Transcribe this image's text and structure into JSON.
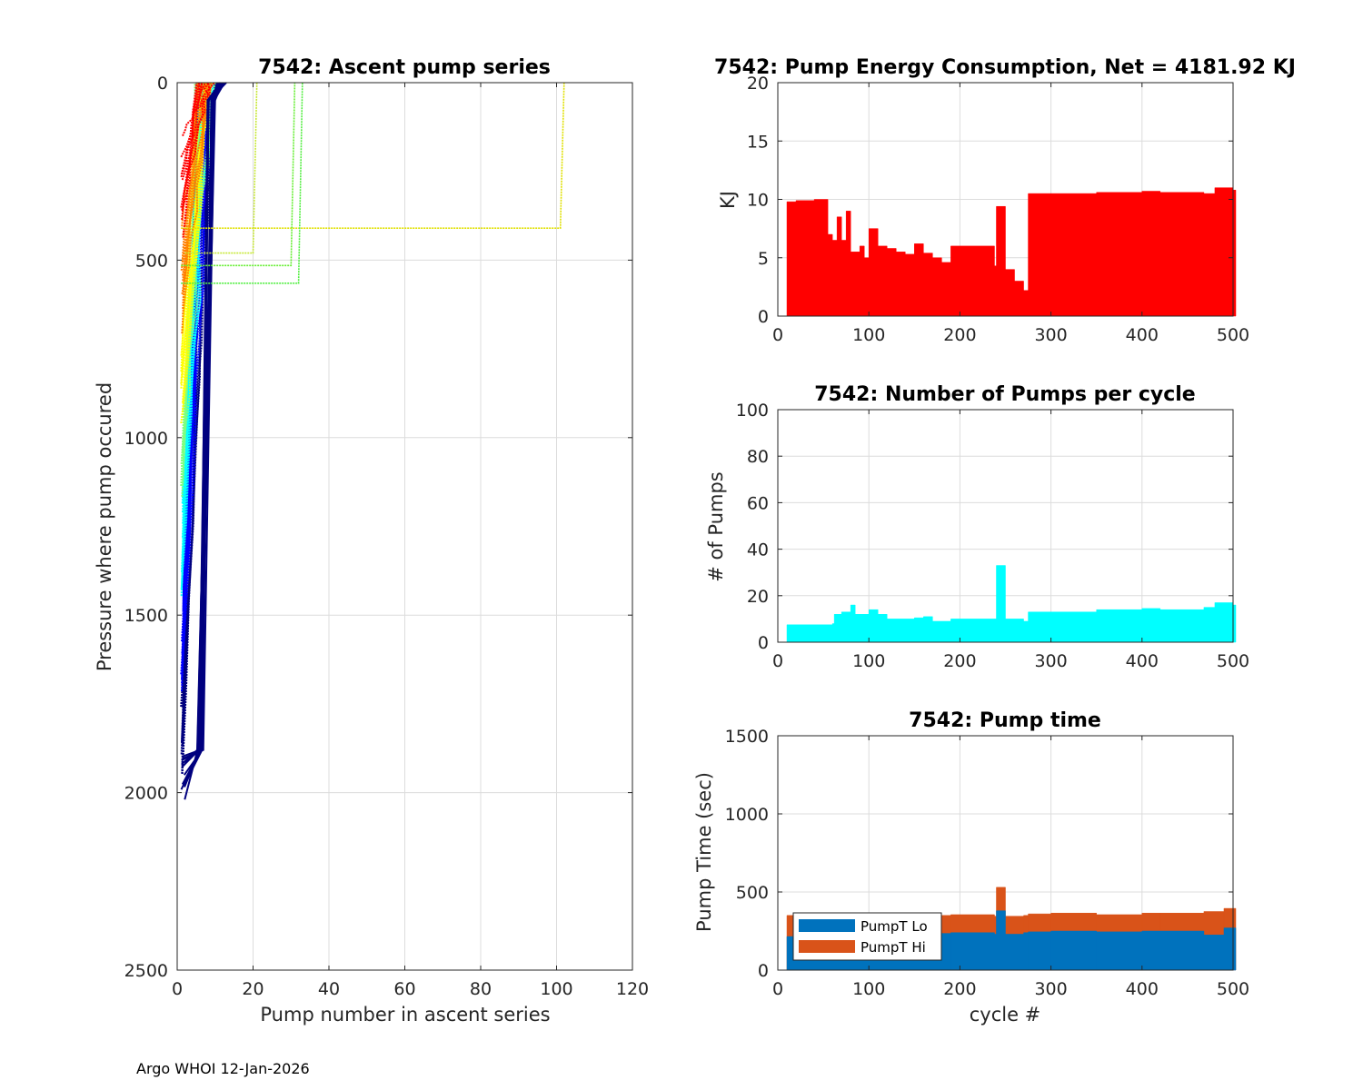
{
  "footer": "Argo WHOI 12-Jan-2026",
  "chart_data": [
    {
      "id": "ascent",
      "type": "line",
      "title": "7542: Ascent pump series",
      "xlabel": "Pump number in ascent series",
      "ylabel": "Pressure where pump occured",
      "xlim": [
        0,
        120
      ],
      "ylim": [
        0,
        2500
      ],
      "y_reversed": true,
      "xticks": [
        0,
        20,
        40,
        60,
        80,
        100,
        120
      ],
      "yticks": [
        0,
        500,
        1000,
        1500,
        2000,
        2500
      ],
      "grid": true,
      "color_scale": [
        "#00007f",
        "#0000ff",
        "#00ffff",
        "#7fff7f",
        "#ffff00",
        "#ff7f00",
        "#ff0000"
      ],
      "outliers": [
        {
          "color": "#e0e000",
          "points": [
            [
              1,
              410
            ],
            [
              101,
              410
            ],
            [
              102,
              0
            ]
          ]
        },
        {
          "color": "#66ee33",
          "points": [
            [
              1,
              515
            ],
            [
              30,
              515
            ],
            [
              31,
              0
            ]
          ]
        },
        {
          "color": "#55ee44",
          "points": [
            [
              1,
              565
            ],
            [
              32,
              565
            ],
            [
              33,
              0
            ]
          ]
        },
        {
          "color": "#c8e838",
          "points": [
            [
              2,
              480
            ],
            [
              20,
              480
            ],
            [
              21,
              0
            ]
          ]
        }
      ]
    },
    {
      "id": "energy",
      "type": "bar",
      "title": "7542: Pump Energy Consumption,  Net = 4181.92 KJ",
      "xlabel": "",
      "ylabel": "KJ",
      "xlim": [
        0,
        500
      ],
      "ylim": [
        0,
        20
      ],
      "xticks": [
        0,
        100,
        200,
        300,
        400,
        500
      ],
      "yticks": [
        0,
        5,
        10,
        15,
        20
      ],
      "grid": true,
      "color": "#ff0000",
      "cycles": [
        10,
        20,
        30,
        40,
        50,
        55,
        60,
        65,
        70,
        75,
        80,
        85,
        90,
        95,
        100,
        110,
        120,
        130,
        140,
        150,
        160,
        170,
        180,
        190,
        238,
        240,
        250,
        260,
        270,
        275,
        300,
        350,
        400,
        420,
        468,
        480,
        500,
        503
      ],
      "values": [
        9.8,
        9.9,
        9.9,
        10.0,
        10.0,
        7.0,
        6.5,
        8.5,
        6.5,
        9.0,
        5.5,
        5.5,
        6.0,
        5.0,
        7.5,
        6.0,
        5.8,
        5.5,
        5.3,
        6.2,
        5.4,
        5.0,
        4.6,
        6.0,
        4.3,
        9.4,
        4.0,
        3.0,
        2.2,
        10.5,
        10.5,
        10.6,
        10.7,
        10.6,
        10.5,
        11.0,
        10.8,
        10.8
      ]
    },
    {
      "id": "pumps",
      "type": "bar",
      "title": "7542: Number of Pumps per cycle",
      "xlabel": "",
      "ylabel": "# of Pumps",
      "xlim": [
        0,
        500
      ],
      "ylim": [
        0,
        100
      ],
      "xticks": [
        0,
        100,
        200,
        300,
        400,
        500
      ],
      "yticks": [
        0,
        20,
        40,
        60,
        80,
        100
      ],
      "grid": true,
      "color": "#00ffff",
      "cycles": [
        10,
        50,
        60,
        62,
        70,
        80,
        85,
        100,
        110,
        120,
        150,
        160,
        170,
        190,
        238,
        240,
        250,
        270,
        275,
        300,
        350,
        400,
        420,
        468,
        480,
        500,
        503
      ],
      "values": [
        7.5,
        7.5,
        8.0,
        12,
        13,
        16,
        12,
        14,
        12,
        10,
        10.5,
        11,
        9,
        10,
        10,
        33,
        10,
        9,
        13,
        13,
        14,
        14.5,
        14,
        15,
        17,
        16,
        16
      ]
    },
    {
      "id": "pumptime",
      "type": "bar",
      "title": "7542: Pump time",
      "xlabel": "cycle #",
      "ylabel": "Pump Time (sec)",
      "xlim": [
        0,
        500
      ],
      "ylim": [
        0,
        1500
      ],
      "xticks": [
        0,
        100,
        200,
        300,
        400,
        500
      ],
      "yticks": [
        0,
        500,
        1000,
        1500
      ],
      "grid": true,
      "stacked": true,
      "legend_position": "bottom-left",
      "cycles": [
        10,
        50,
        100,
        150,
        190,
        238,
        240,
        250,
        270,
        275,
        300,
        350,
        400,
        420,
        468,
        490,
        503
      ],
      "series": [
        {
          "name": "PumpT Lo",
          "color": "#0072bd",
          "values": [
            215,
            220,
            230,
            235,
            240,
            230,
            380,
            230,
            240,
            245,
            250,
            245,
            250,
            250,
            225,
            270,
            285
          ]
        },
        {
          "name": "PumpT Hi",
          "color": "#d95319",
          "values": [
            135,
            135,
            120,
            115,
            115,
            115,
            150,
            115,
            110,
            115,
            115,
            110,
            115,
            115,
            150,
            125,
            120
          ]
        }
      ]
    }
  ]
}
